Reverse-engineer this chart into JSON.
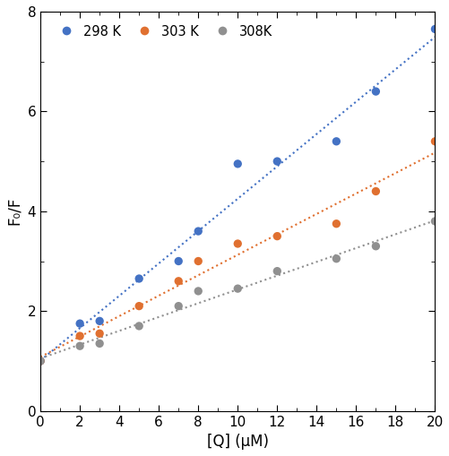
{
  "series": [
    {
      "label": "298 K",
      "color": "#4472C4",
      "x": [
        0,
        2,
        3,
        5,
        7,
        8,
        10,
        12,
        15,
        17,
        20
      ],
      "y": [
        1.0,
        1.75,
        1.8,
        2.65,
        3.0,
        3.6,
        4.95,
        5.0,
        5.4,
        6.4,
        7.65
      ]
    },
    {
      "label": "303 K",
      "color": "#E07030",
      "x": [
        0,
        2,
        3,
        5,
        7,
        8,
        10,
        12,
        15,
        17,
        20
      ],
      "y": [
        1.0,
        1.5,
        1.55,
        2.1,
        2.6,
        3.0,
        3.35,
        3.5,
        3.75,
        4.4,
        5.4
      ]
    },
    {
      "label": "308K",
      "color": "#909090",
      "x": [
        0,
        2,
        3,
        5,
        7,
        8,
        10,
        12,
        15,
        17,
        20
      ],
      "y": [
        1.0,
        1.3,
        1.35,
        1.7,
        2.1,
        2.4,
        2.45,
        2.8,
        3.05,
        3.3,
        3.8
      ]
    }
  ],
  "fit_x_start": 0,
  "fit_x_end": 20,
  "xlabel": "[Q] (μM)",
  "ylabel": "F₀/F",
  "xlim": [
    0,
    20
  ],
  "ylim": [
    0,
    8
  ],
  "xticks": [
    0,
    2,
    4,
    6,
    8,
    10,
    12,
    14,
    16,
    18,
    20
  ],
  "yticks": [
    0,
    2,
    4,
    6,
    8
  ],
  "dot_size": 45,
  "line_width": 1.5
}
